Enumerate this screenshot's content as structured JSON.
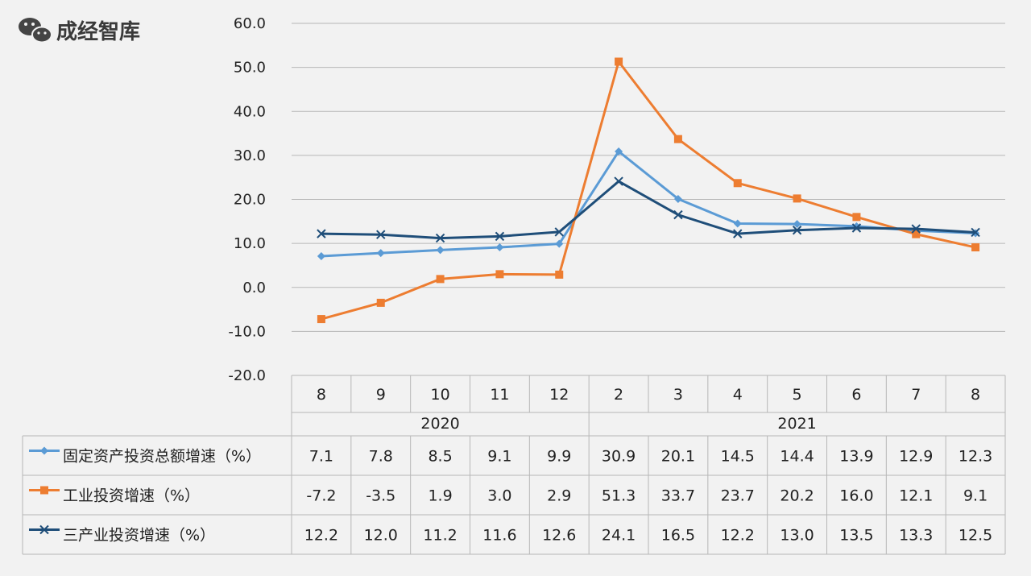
{
  "watermark": {
    "text": "成经智库",
    "icon": "wechat-icon"
  },
  "chart_data": {
    "type": "line",
    "title": "",
    "ylim": [
      -20,
      60
    ],
    "y_ticks": [
      "60.0",
      "50.0",
      "40.0",
      "30.0",
      "20.0",
      "10.0",
      "0.0",
      "-10.0",
      "-20.0"
    ],
    "y_tick_values": [
      60,
      50,
      40,
      30,
      20,
      10,
      0,
      -10,
      -20
    ],
    "grid": true,
    "legend": "bottom-table",
    "categories": [
      "8",
      "9",
      "10",
      "11",
      "12",
      "2",
      "3",
      "4",
      "5",
      "6",
      "7",
      "8"
    ],
    "year_groups": [
      {
        "label": "2020",
        "count": 5
      },
      {
        "label": "2021",
        "count": 7
      }
    ],
    "series": [
      {
        "name": "固定资产投资总额增速（%）",
        "color": "#5b9bd5",
        "marker": "diamond",
        "values": [
          7.1,
          7.8,
          8.5,
          9.1,
          9.9,
          30.9,
          20.1,
          14.5,
          14.4,
          13.9,
          12.9,
          12.3
        ],
        "labels": [
          "7.1",
          "7.8",
          "8.5",
          "9.1",
          "9.9",
          "30.9",
          "20.1",
          "14.5",
          "14.4",
          "13.9",
          "12.9",
          "12.3"
        ]
      },
      {
        "name": "工业投资增速（%）",
        "color": "#ed7d31",
        "marker": "square",
        "values": [
          -7.2,
          -3.5,
          1.9,
          3.0,
          2.9,
          51.3,
          33.7,
          23.7,
          20.2,
          16.0,
          12.1,
          9.1
        ],
        "labels": [
          "-7.2",
          "-3.5",
          "1.9",
          "3.0",
          "2.9",
          "51.3",
          "33.7",
          "23.7",
          "20.2",
          "16.0",
          "12.1",
          "9.1"
        ]
      },
      {
        "name": "三产业投资增速（%）",
        "color": "#1f4e79",
        "marker": "x",
        "values": [
          12.2,
          12.0,
          11.2,
          11.6,
          12.6,
          24.1,
          16.5,
          12.2,
          13.0,
          13.5,
          13.3,
          12.5
        ],
        "labels": [
          "12.2",
          "12.0",
          "11.2",
          "11.6",
          "12.6",
          "24.1",
          "16.5",
          "12.2",
          "13.0",
          "13.5",
          "13.3",
          "12.5"
        ]
      }
    ]
  }
}
